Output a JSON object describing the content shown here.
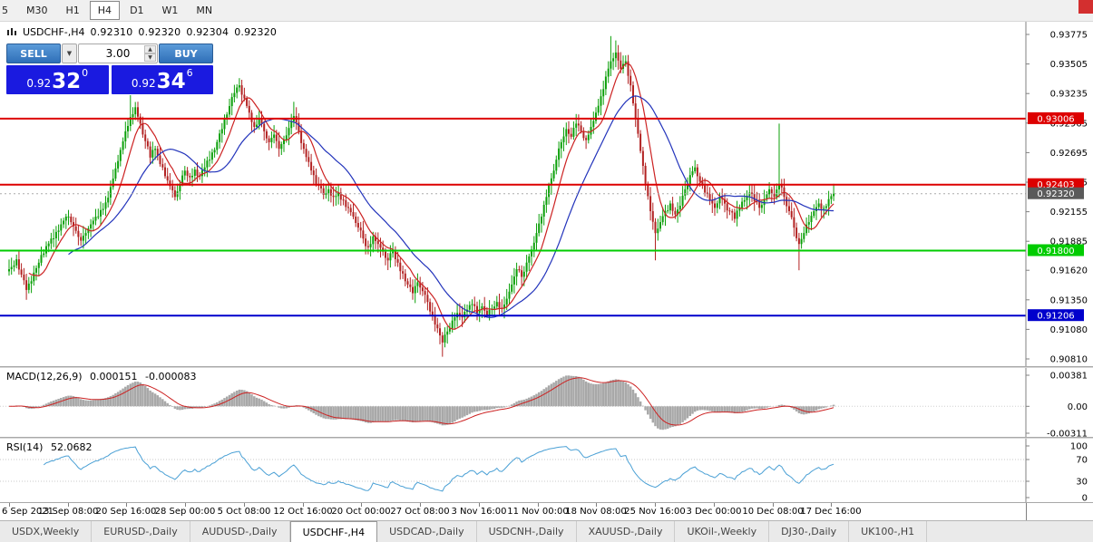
{
  "toolbar": {
    "timeframes": [
      {
        "label": "5",
        "active": false
      },
      {
        "label": "M30",
        "active": false
      },
      {
        "label": "H1",
        "active": false
      },
      {
        "label": "H4",
        "active": true
      },
      {
        "label": "D1",
        "active": false
      },
      {
        "label": "W1",
        "active": false
      },
      {
        "label": "MN",
        "active": false
      }
    ]
  },
  "header": {
    "symbol": "USDCHF-,H4",
    "open": "0.92310",
    "high": "0.92320",
    "low": "0.92304",
    "close": "0.92320"
  },
  "trade_panel": {
    "sell_label": "SELL",
    "buy_label": "BUY",
    "volume": "3.00",
    "sell_price": {
      "prefix": "0.92",
      "big": "32",
      "sup": "0"
    },
    "buy_price": {
      "prefix": "0.92",
      "big": "34",
      "sup": "6"
    },
    "colors": {
      "button_top": "#5b9bd9",
      "button_bottom": "#2f6fb8",
      "box": "#1a1ae0"
    }
  },
  "chart_data": {
    "main": {
      "type": "candlestick",
      "symbol": "USDCHF-,H4",
      "timeframe": "H4",
      "y_range": [
        0.9081,
        0.93775
      ],
      "y_ticks": [
        "0.93775",
        "0.93505",
        "0.93235",
        "0.92965",
        "0.92695",
        "0.92425",
        "0.92155",
        "0.91885",
        "0.91620",
        "0.91350",
        "0.91080",
        "0.90810"
      ],
      "closes": [
        0.9165,
        0.9172,
        0.9158,
        0.9144,
        0.9152,
        0.9164,
        0.9176,
        0.9184,
        0.9191,
        0.9197,
        0.9204,
        0.9211,
        0.9206,
        0.9198,
        0.9189,
        0.9196,
        0.9204,
        0.9211,
        0.9217,
        0.9224,
        0.9238,
        0.9255,
        0.9272,
        0.9289,
        0.9302,
        0.9311,
        0.9296,
        0.928,
        0.9265,
        0.9273,
        0.9259,
        0.9248,
        0.9239,
        0.9229,
        0.9241,
        0.9253,
        0.9247,
        0.9254,
        0.9248,
        0.9256,
        0.9263,
        0.9272,
        0.9287,
        0.93,
        0.9312,
        0.9324,
        0.9331,
        0.9319,
        0.9306,
        0.9293,
        0.9301,
        0.9289,
        0.9279,
        0.9286,
        0.9273,
        0.9281,
        0.9292,
        0.9303,
        0.9289,
        0.9273,
        0.9261,
        0.9249,
        0.9239,
        0.9231,
        0.9236,
        0.9229,
        0.9233,
        0.9226,
        0.9219,
        0.9211,
        0.9201,
        0.9191,
        0.9183,
        0.9193,
        0.9186,
        0.9179,
        0.9171,
        0.9179,
        0.9169,
        0.9159,
        0.9149,
        0.9141,
        0.9151,
        0.9143,
        0.9133,
        0.9121,
        0.9109,
        0.9096,
        0.9106,
        0.9116,
        0.9123,
        0.9119,
        0.9126,
        0.9131,
        0.9123,
        0.9129,
        0.9121,
        0.9127,
        0.9133,
        0.9127,
        0.9136,
        0.9149,
        0.9163,
        0.9156,
        0.9169,
        0.9181,
        0.9196,
        0.9211,
        0.9229,
        0.9246,
        0.9263,
        0.9279,
        0.9291,
        0.9284,
        0.9296,
        0.9289,
        0.9281,
        0.9293,
        0.9306,
        0.9321,
        0.9339,
        0.9353,
        0.9361,
        0.9346,
        0.9353,
        0.9331,
        0.9301,
        0.9271,
        0.9241,
        0.9216,
        0.9196,
        0.9206,
        0.9216,
        0.9223,
        0.9213,
        0.9221,
        0.9236,
        0.9249,
        0.9256,
        0.9243,
        0.9233,
        0.9226,
        0.9219,
        0.9229,
        0.9223,
        0.9216,
        0.9209,
        0.9219,
        0.9226,
        0.9233,
        0.9225,
        0.9219,
        0.9227,
        0.9236,
        0.9229,
        0.9241,
        0.9229,
        0.9216,
        0.9201,
        0.9186,
        0.9196,
        0.9206,
        0.9216,
        0.9223,
        0.9219,
        0.9227,
        0.9232
      ],
      "spikes": {
        "3": {
          "low": 0.9135
        },
        "24": {
          "high": 0.9322
        },
        "46": {
          "high": 0.9336
        },
        "57": {
          "high": 0.9316
        },
        "87": {
          "low": 0.9083
        },
        "121": {
          "high": 0.9376
        },
        "122": {
          "high": 0.9372
        },
        "130": {
          "low": 0.9171
        },
        "155": {
          "high": 0.9296
        },
        "159": {
          "low": 0.9162
        }
      },
      "h_lines": [
        {
          "price": 0.93006,
          "label": "0.93006",
          "color": "#dd0000"
        },
        {
          "price": 0.92403,
          "label": "0.92403",
          "color": "#dd0000"
        },
        {
          "price": 0.918,
          "label": "0.91800",
          "color": "#00cc00"
        },
        {
          "price": 0.91206,
          "label": "0.91206",
          "color": "#0000cc"
        }
      ],
      "current_price": {
        "value": 0.9232,
        "label": "0.92320",
        "color": "#5a5a5a"
      },
      "colors": {
        "bull": "#0ca00a",
        "bear": "#b22222",
        "ma_fast": "#cc2222",
        "ma_slow": "#2233bb"
      },
      "x_labels": [
        "6 Sep 2021",
        "13 Sep 08:00",
        "20 Sep 16:00",
        "28 Sep 00:00",
        "5 Oct 08:00",
        "12 Oct 16:00",
        "20 Oct 00:00",
        "27 Oct 08:00",
        "3 Nov 16:00",
        "11 Nov 00:00",
        "18 Nov 08:00",
        "25 Nov 16:00",
        "3 Dec 00:00",
        "10 Dec 08:00",
        "17 Dec 16:00"
      ]
    },
    "macd": {
      "type": "histogram_line",
      "label": "MACD(12,26,9)",
      "value_main": "0.000151",
      "value_signal": "-0.000083",
      "params": [
        12,
        26,
        9
      ],
      "y_ticks": [
        "0.00381",
        "0.00",
        "-0.00311"
      ],
      "y_range": [
        -0.00311,
        0.00381
      ],
      "colors": {
        "hist": "#a8a8a8",
        "signal": "#cc2222"
      }
    },
    "rsi": {
      "type": "line",
      "label": "RSI(14)",
      "value": "52.0682",
      "period": 14,
      "y_ticks": [
        "100",
        "70",
        "30",
        "0"
      ],
      "levels": [
        70,
        30
      ],
      "y_range": [
        0,
        100
      ],
      "color": "#4aa0d5"
    }
  },
  "tabs": [
    {
      "label": "USDX,Weekly",
      "active": false
    },
    {
      "label": "EURUSD-,Daily",
      "active": false
    },
    {
      "label": "AUDUSD-,Daily",
      "active": false
    },
    {
      "label": "USDCHF-,H4",
      "active": true
    },
    {
      "label": "USDCAD-,Daily",
      "active": false
    },
    {
      "label": "USDCNH-,Daily",
      "active": false
    },
    {
      "label": "XAUUSD-,Daily",
      "active": false
    },
    {
      "label": "UKOil-,Weekly",
      "active": false
    },
    {
      "label": "DJ30-,Daily",
      "active": false
    },
    {
      "label": "UK100-,H1",
      "active": false
    }
  ]
}
